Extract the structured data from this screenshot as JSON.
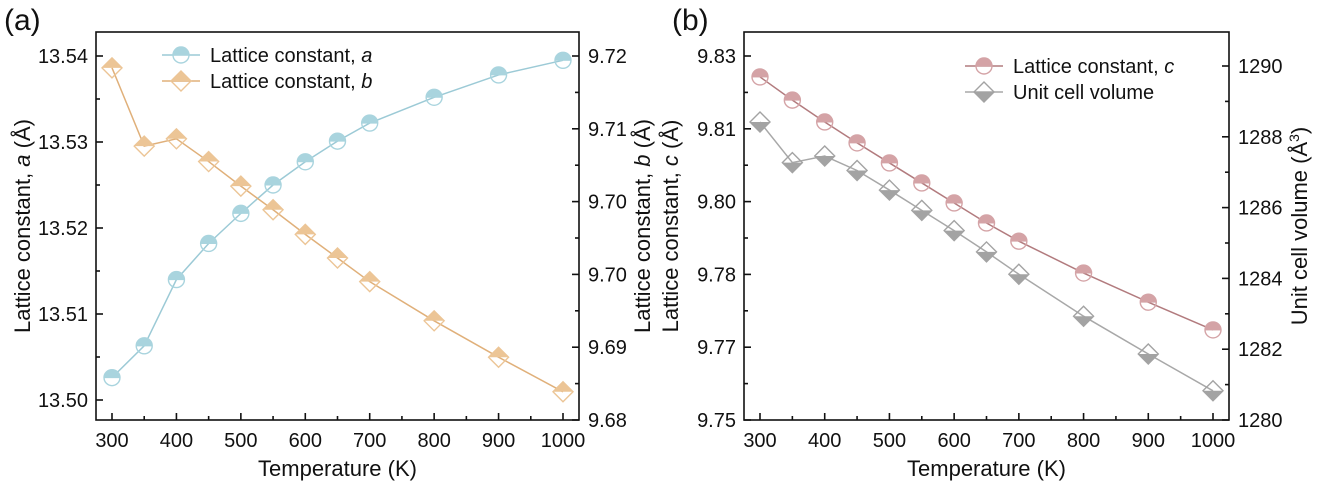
{
  "chart_data": [
    {
      "panel_label": "(a)",
      "type": "line",
      "xlabel": "Temperature (K)",
      "ylabel_left": "Lattice constant, a (Å)",
      "ylabel_left_parts": [
        "Lattice constant, ",
        "a",
        " (Å)"
      ],
      "ylabel_right_lines": [
        [
          "Lattice constant, ",
          "b",
          " (Å)"
        ],
        [
          "Lattice constant, ",
          "c",
          " (Å)"
        ]
      ],
      "xlim": [
        275,
        1025
      ],
      "xticks": [
        300,
        400,
        500,
        600,
        700,
        800,
        900,
        1000
      ],
      "xtick_labels": [
        "300",
        "400",
        "500",
        "600",
        "700",
        "800",
        "900",
        "1000"
      ],
      "ylim_left": [
        13.4982,
        13.5424
      ],
      "yticks_left": [
        13.5,
        13.51,
        13.52,
        13.53,
        13.54
      ],
      "ytick_labels_left": [
        "13.50",
        "13.51",
        "13.52",
        "13.53",
        "13.54"
      ],
      "ylim_right": [
        9.68,
        9.72
      ],
      "yticks_right": [
        9.68,
        9.688,
        9.696,
        9.704,
        9.712,
        9.72
      ],
      "ytick_labels_right": [
        "9.68",
        "9.69",
        "9.70",
        "9.70",
        "9.71",
        "9.72"
      ],
      "legend_position": "top-center",
      "grid": false,
      "x": [
        300,
        350,
        400,
        450,
        500,
        550,
        600,
        650,
        700,
        800,
        900,
        1000
      ],
      "series": [
        {
          "name": "Lattice constant, a",
          "name_parts": [
            "Lattice constant, ",
            "a"
          ],
          "axis": "left",
          "marker": "circle",
          "color": "#a9d4de",
          "line_color": "#9ccad6",
          "values": [
            13.5026,
            13.5063,
            13.514,
            13.5182,
            13.5217,
            13.525,
            13.5277,
            13.5301,
            13.5322,
            13.5352,
            13.5378,
            13.5395
          ]
        },
        {
          "name": "Lattice constant, b",
          "name_parts": [
            "Lattice constant, ",
            "b"
          ],
          "axis": "right",
          "marker": "diamond",
          "color": "#ecc596",
          "line_color": "#e0b07a",
          "values": [
            9.7187,
            9.7101,
            9.7109,
            9.7084,
            9.7057,
            9.7031,
            9.7004,
            9.6978,
            9.6952,
            9.6909,
            9.6869,
            9.6831
          ]
        }
      ]
    },
    {
      "panel_label": "(b)",
      "type": "line",
      "xlabel": "Temperature (K)",
      "ylabel_left": "Lattice constant, c (Å)",
      "ylabel_right": "Unit cell volume (Å3)",
      "ylabel_right_parts": [
        "Unit cell volume (Å",
        "3",
        ")"
      ],
      "xlim": [
        275,
        1025
      ],
      "xticks": [
        300,
        400,
        500,
        600,
        700,
        800,
        900,
        1000
      ],
      "xtick_labels": [
        "300",
        "400",
        "500",
        "600",
        "700",
        "800",
        "900",
        "1000"
      ],
      "ylim_left": [
        9.75,
        9.83
      ],
      "yticks_left": [
        9.75,
        9.766,
        9.782,
        9.798,
        9.814,
        9.83
      ],
      "ytick_labels_left": [
        "9.75",
        "9.77",
        "9.78",
        "9.80",
        "9.81",
        "9.83"
      ],
      "ylim_right": [
        1280,
        1290.3
      ],
      "yticks_right": [
        1280,
        1282,
        1284,
        1286,
        1288,
        1290
      ],
      "ytick_labels_right": [
        "1280",
        "1282",
        "1284",
        "1286",
        "1288",
        "1290"
      ],
      "legend_position": "top-right",
      "grid": false,
      "x": [
        300,
        350,
        400,
        450,
        500,
        550,
        600,
        650,
        700,
        800,
        900,
        1000
      ],
      "series": [
        {
          "name": "Lattice constant, c",
          "name_parts": [
            "Lattice constant, ",
            "c"
          ],
          "axis": "left",
          "marker": "circle",
          "color": "#d4a3a6",
          "line_color": "#b27b7e",
          "values": [
            9.8254,
            9.8203,
            9.8155,
            9.8109,
            9.8065,
            9.8021,
            9.7977,
            9.7933,
            9.7893,
            9.7823,
            9.7759,
            9.7698
          ]
        },
        {
          "name": "Unit cell volume",
          "name_parts": [
            "Unit cell volume",
            ""
          ],
          "axis": "right",
          "marker": "diamond",
          "color": "#a3a3a3",
          "line_color": "#a8a8a8",
          "values": [
            1288.67,
            1287.49,
            1287.68,
            1287.26,
            1286.69,
            1286.1,
            1285.51,
            1284.89,
            1284.24,
            1283.02,
            1281.92,
            1280.85
          ]
        }
      ]
    }
  ]
}
